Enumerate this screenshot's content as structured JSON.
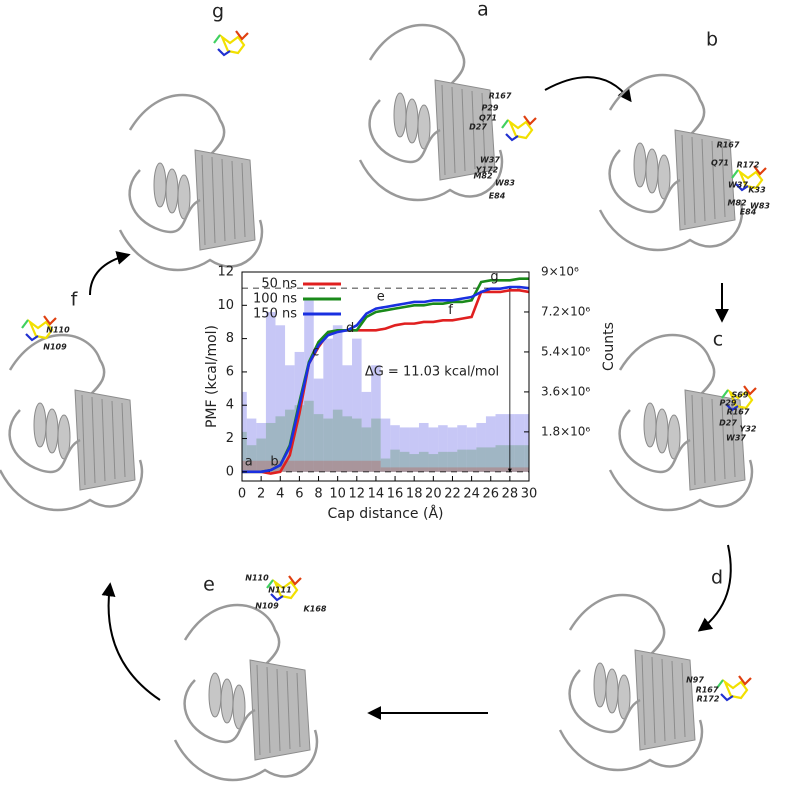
{
  "chart_data": {
    "type": "line",
    "xlabel": "Cap distance (Å)",
    "ylabel": "PMF (kcal/mol)",
    "y2label": "Counts",
    "x": [
      0,
      1,
      2,
      3,
      4,
      5,
      6,
      7,
      8,
      9,
      10,
      11,
      12,
      13,
      14,
      15,
      16,
      17,
      18,
      19,
      20,
      21,
      22,
      23,
      24,
      25,
      26,
      27,
      28,
      29,
      30
    ],
    "xlim": [
      0,
      30
    ],
    "xticks": [
      0,
      2,
      4,
      6,
      8,
      10,
      12,
      14,
      16,
      18,
      20,
      22,
      24,
      26,
      28,
      30
    ],
    "ylim": [
      -0.55,
      12
    ],
    "yticks": [
      0,
      2,
      4,
      6,
      8,
      10,
      12
    ],
    "y2lim": [
      -412500,
      9000000
    ],
    "y2ticks": [
      {
        "value": 1800000,
        "label": "1.8×10⁶"
      },
      {
        "value": 3600000,
        "label": "3.6×10⁶"
      },
      {
        "value": 5400000,
        "label": "5.4×10⁶"
      },
      {
        "value": 7200000,
        "label": "7.2×10⁶"
      },
      {
        "value": 9000000,
        "label": "9×10⁶"
      }
    ],
    "legend": "top-left",
    "series": [
      {
        "name": "50 ns",
        "color": "#e02020",
        "values": [
          0,
          0,
          0,
          -0.1,
          0,
          1,
          3.5,
          6.5,
          7.5,
          8.3,
          8.5,
          8.5,
          8.5,
          8.5,
          8.5,
          8.6,
          8.8,
          8.9,
          8.9,
          9,
          9,
          9.1,
          9.1,
          9.2,
          9.3,
          10.8,
          10.8,
          10.8,
          10.9,
          10.9,
          10.8
        ]
      },
      {
        "name": "100 ns",
        "color": "#1a8a1a",
        "values": [
          0,
          0,
          0,
          0.1,
          0.4,
          1.6,
          4.2,
          6.6,
          7.8,
          8.4,
          8.5,
          8.5,
          8.5,
          9.3,
          9.6,
          9.7,
          9.8,
          9.9,
          10,
          10,
          10.1,
          10.1,
          10.2,
          10.2,
          10.3,
          11.4,
          11.5,
          11.5,
          11.5,
          11.6,
          11.6
        ]
      },
      {
        "name": "150 ns",
        "color": "#1a30e0",
        "values": [
          0,
          0,
          0,
          0.1,
          0.4,
          1.5,
          4,
          6.5,
          7.6,
          8.2,
          8.4,
          8.5,
          8.8,
          9.5,
          9.8,
          9.9,
          10,
          10.1,
          10.2,
          10.2,
          10.3,
          10.3,
          10.3,
          10.4,
          10.5,
          10.8,
          11,
          11,
          11.1,
          11.1,
          11.03
        ]
      }
    ],
    "histograms": [
      {
        "color": "#9999ee",
        "axis": "y2",
        "values": [
          3600000,
          2400000,
          2200000,
          7200000,
          6600000,
          4800000,
          5400000,
          7800000,
          4200000,
          6000000,
          6600000,
          4800000,
          6000000,
          3600000,
          4800000,
          2400000,
          2100000,
          2000000,
          2000000,
          2200000,
          2000000,
          2100000,
          2000000,
          2100000,
          2000000,
          2200000,
          2500000,
          2600000,
          2600000,
          2600000,
          2600000
        ]
      },
      {
        "color": "#7fa89a",
        "axis": "y2",
        "values": [
          1800000,
          1200000,
          1500000,
          2200000,
          2500000,
          2800000,
          3000000,
          3200000,
          2600000,
          2400000,
          2800000,
          2500000,
          2400000,
          2000000,
          2400000,
          600000,
          1000000,
          900000,
          800000,
          900000,
          800000,
          900000,
          900000,
          1000000,
          1000000,
          1100000,
          1100000,
          1200000,
          1200000,
          1200000,
          1200000
        ]
      },
      {
        "color": "#b07a7a",
        "axis": "y2",
        "values": [
          500000,
          500000,
          500000,
          500000,
          500000,
          500000,
          500000,
          500000,
          500000,
          500000,
          500000,
          500000,
          500000,
          500000,
          500000,
          200000,
          200000,
          200000,
          200000,
          200000,
          200000,
          200000,
          200000,
          200000,
          200000,
          200000,
          200000,
          200000,
          200000,
          200000,
          200000
        ]
      }
    ],
    "annotations": [
      {
        "text": "a",
        "x": 0.7,
        "y": 0.6
      },
      {
        "text": "b",
        "x": 3.4,
        "y": 0.6
      },
      {
        "text": "c",
        "x": 7.7,
        "y": 7.2
      },
      {
        "text": "d",
        "x": 11.3,
        "y": 8.6
      },
      {
        "text": "e",
        "x": 14.5,
        "y": 10.5
      },
      {
        "text": "f",
        "x": 21.8,
        "y": 9.7
      },
      {
        "text": "g",
        "x": 26.4,
        "y": 11.7
      }
    ],
    "delta_g": {
      "text": "ΔG = 11.03 kcal/mol",
      "x": 28,
      "from": 0,
      "to": 11.03
    }
  },
  "panels": [
    {
      "label": "a",
      "residues": [
        "R167",
        "P29",
        "Q71",
        "D27",
        "W37",
        "Y172",
        "M82",
        "W83",
        "E84"
      ]
    },
    {
      "label": "b",
      "residues": [
        "R167",
        "Q71",
        "R172",
        "W37",
        "K33",
        "M82",
        "W83",
        "E84"
      ]
    },
    {
      "label": "c",
      "residues": [
        "S69",
        "P29",
        "R167",
        "D27",
        "Y32",
        "W37"
      ]
    },
    {
      "label": "d",
      "residues": [
        "N97",
        "R167",
        "R172"
      ]
    },
    {
      "label": "e",
      "residues": [
        "N110",
        "N111",
        "N109",
        "K168"
      ]
    },
    {
      "label": "f",
      "residues": [
        "N110",
        "N109"
      ]
    },
    {
      "label": "g",
      "residues": []
    }
  ]
}
